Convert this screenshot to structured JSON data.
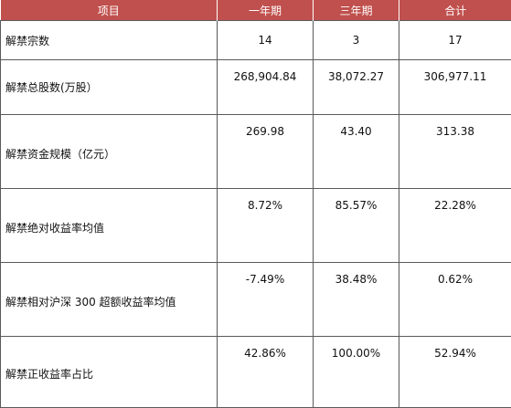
{
  "table": {
    "headers": [
      "项目",
      "一年期",
      "三年期",
      "合计"
    ],
    "rows": [
      {
        "label": "解禁宗数",
        "values": [
          "14",
          "3",
          "17"
        ]
      },
      {
        "label": "解禁总股数(万股）",
        "values": [
          "268,904.84",
          "38,072.27",
          "306,977.11"
        ]
      },
      {
        "label": "解禁资金规模（亿元）",
        "values": [
          "269.98",
          "43.40",
          "313.38"
        ]
      },
      {
        "label": "解禁绝对收益率均值",
        "values": [
          "8.72%",
          "85.57%",
          "22.28%"
        ]
      },
      {
        "label": "解禁相对沪深 300 超额收益率均值",
        "values": [
          "-7.49%",
          "38.48%",
          "0.62%"
        ]
      },
      {
        "label": "解禁正收益率占比",
        "values": [
          "42.86%",
          "100.00%",
          "52.94%"
        ]
      }
    ]
  },
  "colors": {
    "header_background": "#c0504d",
    "header_text": "#ffffff",
    "border": "#5a5a5a"
  }
}
